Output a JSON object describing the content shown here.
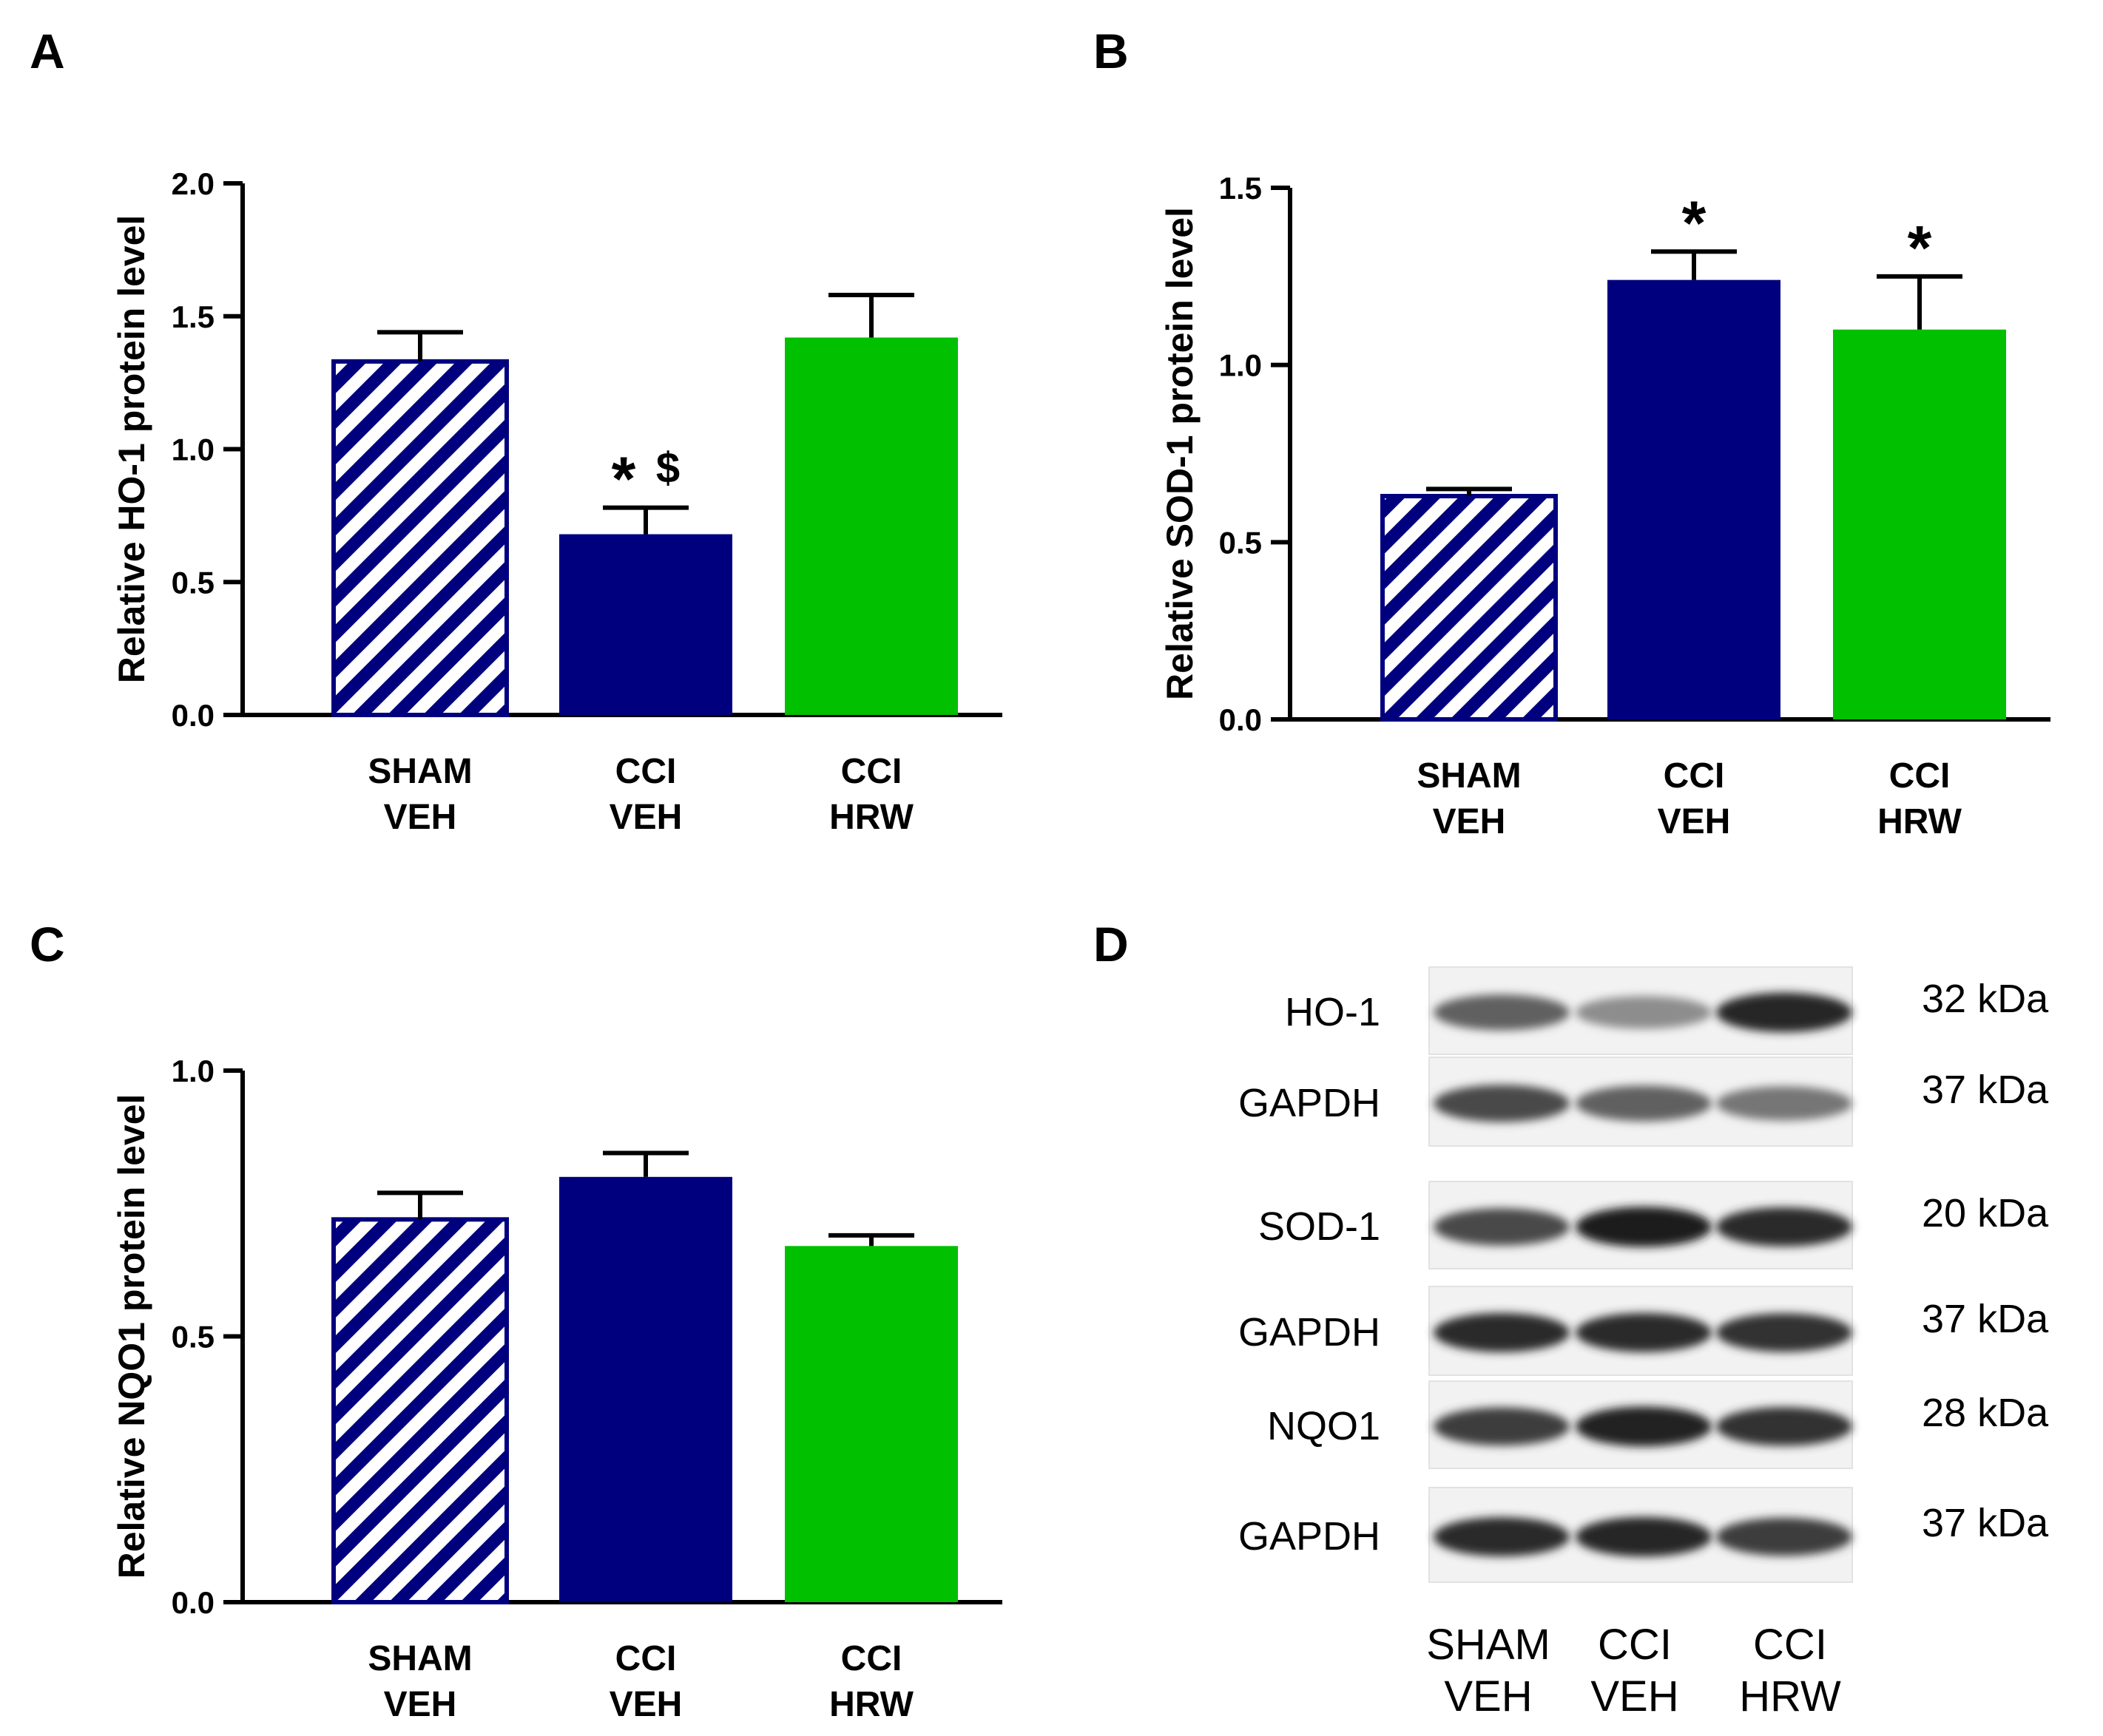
{
  "chart_data": [
    {
      "panel": "A",
      "type": "bar",
      "categories": [
        [
          "SHAM",
          "VEH"
        ],
        [
          "CCI",
          "VEH"
        ],
        [
          "CCI",
          "HRW"
        ]
      ],
      "values": [
        1.33,
        0.68,
        1.42
      ],
      "errors": [
        0.11,
        0.1,
        0.16
      ],
      "styles": [
        "hatch",
        "navy",
        "green"
      ],
      "annotations": [
        "",
        "*$",
        ""
      ],
      "ylabel": "Relative HO-1 protein level",
      "ylim": [
        0,
        2.0
      ],
      "yticks": [
        "0.0",
        "0.5",
        "1.0",
        "1.5",
        "2.0"
      ]
    },
    {
      "panel": "B",
      "type": "bar",
      "categories": [
        [
          "SHAM",
          "VEH"
        ],
        [
          "CCI",
          "VEH"
        ],
        [
          "CCI",
          "HRW"
        ]
      ],
      "values": [
        0.63,
        1.24,
        1.1
      ],
      "errors": [
        0.02,
        0.08,
        0.15
      ],
      "styles": [
        "hatch",
        "navy",
        "green"
      ],
      "annotations": [
        "",
        "*",
        "*"
      ],
      "ylabel": "Relative SOD-1 protein level",
      "ylim": [
        0,
        1.5
      ],
      "yticks": [
        "0.0",
        "0.5",
        "1.0",
        "1.5"
      ]
    },
    {
      "panel": "C",
      "type": "bar",
      "categories": [
        [
          "SHAM",
          "VEH"
        ],
        [
          "CCI",
          "VEH"
        ],
        [
          "CCI",
          "HRW"
        ]
      ],
      "values": [
        0.72,
        0.8,
        0.67
      ],
      "errors": [
        0.05,
        0.045,
        0.02
      ],
      "styles": [
        "hatch",
        "navy",
        "green"
      ],
      "annotations": [
        "",
        "",
        ""
      ],
      "ylabel": "Relative NQO1 protein level",
      "ylim": [
        0,
        1.0
      ],
      "yticks": [
        "0.0",
        "0.5",
        "1.0"
      ]
    }
  ],
  "colors": {
    "navy": "#00007f",
    "green": "#00c000",
    "hatch_bg": "#ffffff"
  },
  "blot": {
    "panel": "D",
    "rows": [
      {
        "protein": "HO-1",
        "size": "32 kDa",
        "intensities": [
          0.62,
          0.42,
          0.88
        ]
      },
      {
        "protein": "GAPDH",
        "size": "37 kDa",
        "intensities": [
          0.72,
          0.62,
          0.52
        ]
      },
      {
        "protein": "SOD-1",
        "size": "20 kDa",
        "intensities": [
          0.72,
          0.92,
          0.85
        ]
      },
      {
        "protein": "GAPDH",
        "size": "37 kDa",
        "intensities": [
          0.85,
          0.85,
          0.82
        ]
      },
      {
        "protein": "NQO1",
        "size": "28 kDa",
        "intensities": [
          0.78,
          0.9,
          0.82
        ]
      },
      {
        "protein": "GAPDH",
        "size": "37 kDa",
        "intensities": [
          0.85,
          0.88,
          0.78
        ]
      }
    ],
    "lanes": [
      [
        "SHAM",
        "VEH"
      ],
      [
        "CCI",
        "VEH"
      ],
      [
        "CCI",
        "HRW"
      ]
    ]
  }
}
